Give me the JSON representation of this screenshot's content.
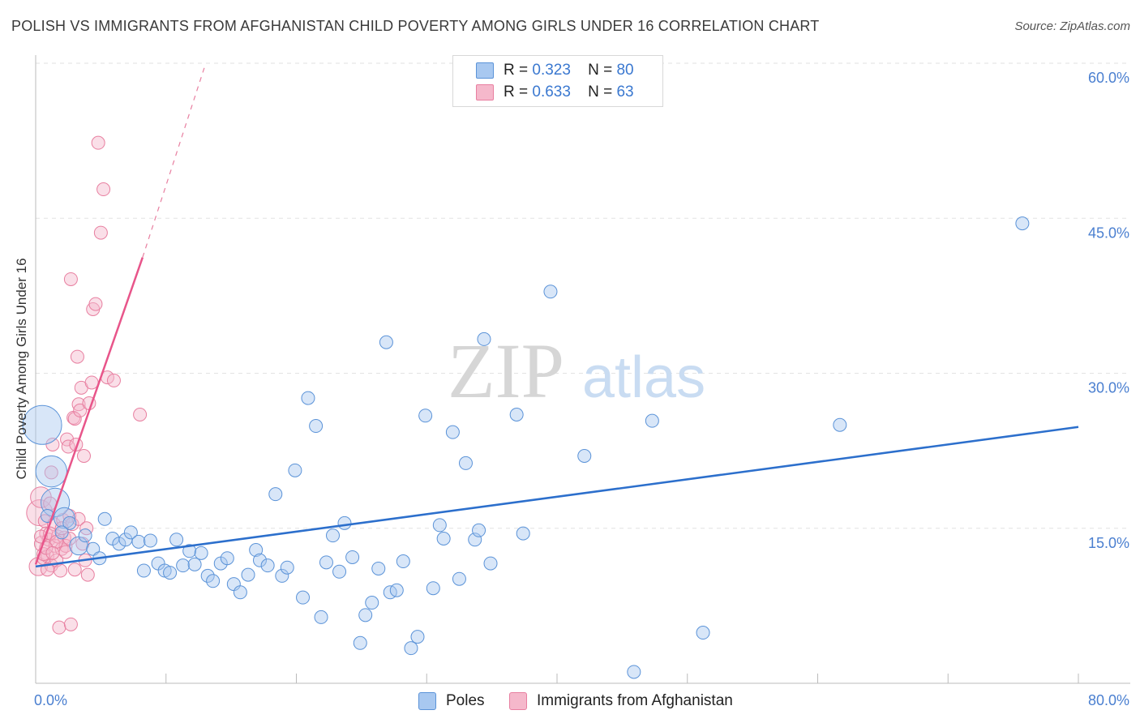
{
  "header": {
    "title": "POLISH VS IMMIGRANTS FROM AFGHANISTAN CHILD POVERTY AMONG GIRLS UNDER 16 CORRELATION CHART",
    "source": "Source: ZipAtlas.com"
  },
  "watermark": {
    "zip": "ZIP",
    "atlas": "atlas"
  },
  "legend": {
    "rows": [
      {
        "r_label": "R =",
        "r_value": "0.323",
        "n_label": "N =",
        "n_value": "80"
      },
      {
        "r_label": "R =",
        "r_value": "0.633",
        "n_label": "N =",
        "n_value": "63"
      }
    ]
  },
  "bottom_legend": {
    "poles": "Poles",
    "afghan": "Immigrants from Afghanistan"
  },
  "chart_data": {
    "type": "scatter",
    "title": "POLISH VS IMMIGRANTS FROM AFGHANISTAN CHILD POVERTY AMONG GIRLS UNDER 16 CORRELATION CHART",
    "xlabel": "",
    "ylabel": "Child Poverty Among Girls Under 16",
    "xlim": [
      0,
      80
    ],
    "ylim": [
      0,
      60
    ],
    "x_tick_labels": [
      "0.0%",
      "80.0%"
    ],
    "y_ticks": [
      15,
      30,
      45,
      60
    ],
    "y_tick_labels": [
      "15.0%",
      "30.0%",
      "45.0%",
      "60.0%"
    ],
    "grid": true,
    "colors": {
      "poles_fill": "#a8c8f0",
      "poles_stroke": "#5b93d8",
      "poles_line": "#2c6fcc",
      "afghan_fill": "#f5b8cb",
      "afghan_stroke": "#e87fa0",
      "afghan_line": "#e8558a",
      "axis_text": "#4a7fd0"
    },
    "series": [
      {
        "name": "Poles",
        "R": 0.323,
        "N": 80,
        "trend": {
          "x0": 0,
          "y0": 11.3,
          "x1": 80,
          "y1": 24.8
        },
        "points": [
          [
            0.5,
            25.0,
            3
          ],
          [
            1.2,
            20.5,
            2.4
          ],
          [
            1.5,
            17.5,
            2.2
          ],
          [
            2.2,
            16.0,
            1.6
          ],
          [
            2.6,
            15.5,
            1
          ],
          [
            3.3,
            13.3,
            1.4
          ],
          [
            3.8,
            14.3,
            1
          ],
          [
            4.4,
            13.0,
            1
          ],
          [
            4.9,
            12.1,
            1
          ],
          [
            5.3,
            15.9,
            1
          ],
          [
            5.9,
            14.0,
            1
          ],
          [
            6.4,
            13.5,
            1
          ],
          [
            6.9,
            13.9,
            1
          ],
          [
            7.3,
            14.6,
            1
          ],
          [
            7.9,
            13.7,
            1
          ],
          [
            8.3,
            10.9,
            1
          ],
          [
            8.8,
            13.8,
            1
          ],
          [
            9.4,
            11.6,
            1
          ],
          [
            9.9,
            10.9,
            1
          ],
          [
            10.3,
            10.7,
            1
          ],
          [
            10.8,
            13.9,
            1
          ],
          [
            11.3,
            11.4,
            1
          ],
          [
            11.8,
            12.8,
            1
          ],
          [
            12.2,
            11.5,
            1
          ],
          [
            12.7,
            12.6,
            1
          ],
          [
            13.2,
            10.4,
            1
          ],
          [
            13.6,
            9.9,
            1
          ],
          [
            14.2,
            11.6,
            1
          ],
          [
            14.7,
            12.1,
            1
          ],
          [
            15.2,
            9.6,
            1
          ],
          [
            15.7,
            8.8,
            1
          ],
          [
            16.3,
            10.5,
            1
          ],
          [
            16.9,
            12.9,
            1
          ],
          [
            17.2,
            11.9,
            1
          ],
          [
            17.8,
            11.4,
            1
          ],
          [
            18.4,
            18.3,
            1
          ],
          [
            18.9,
            10.4,
            1
          ],
          [
            19.3,
            11.2,
            1
          ],
          [
            19.9,
            20.6,
            1
          ],
          [
            20.5,
            8.3,
            1
          ],
          [
            20.9,
            27.6,
            1
          ],
          [
            21.5,
            24.9,
            1
          ],
          [
            21.9,
            6.4,
            1
          ],
          [
            22.3,
            11.7,
            1
          ],
          [
            22.8,
            14.3,
            1
          ],
          [
            23.3,
            10.8,
            1
          ],
          [
            23.7,
            15.5,
            1
          ],
          [
            24.3,
            12.2,
            1
          ],
          [
            24.9,
            3.9,
            1
          ],
          [
            25.3,
            6.6,
            1
          ],
          [
            25.8,
            7.8,
            1
          ],
          [
            26.3,
            11.1,
            1
          ],
          [
            26.9,
            33.0,
            1
          ],
          [
            27.2,
            8.8,
            1
          ],
          [
            27.7,
            9.0,
            1
          ],
          [
            28.2,
            11.8,
            1
          ],
          [
            28.8,
            3.4,
            1
          ],
          [
            29.3,
            4.5,
            1
          ],
          [
            29.9,
            25.9,
            1
          ],
          [
            30.5,
            9.2,
            1
          ],
          [
            31.0,
            15.3,
            1
          ],
          [
            31.3,
            14.0,
            1
          ],
          [
            32.0,
            24.3,
            1
          ],
          [
            32.5,
            10.1,
            1
          ],
          [
            33.0,
            21.3,
            1
          ],
          [
            33.7,
            13.9,
            1
          ],
          [
            34.0,
            14.8,
            1
          ],
          [
            34.4,
            33.3,
            1
          ],
          [
            34.9,
            11.6,
            1
          ],
          [
            36.9,
            26.0,
            1
          ],
          [
            37.4,
            14.5,
            1
          ],
          [
            39.5,
            37.9,
            1
          ],
          [
            42.1,
            22.0,
            1
          ],
          [
            45.9,
            1.1,
            1
          ],
          [
            47.3,
            25.4,
            1
          ],
          [
            51.2,
            4.9,
            1
          ],
          [
            61.7,
            25.0,
            1
          ],
          [
            75.7,
            44.5,
            1
          ],
          [
            0.9,
            16.2,
            1
          ],
          [
            2.0,
            14.6,
            1
          ]
        ]
      },
      {
        "name": "Immigrants from Afghanistan",
        "R": 0.633,
        "N": 63,
        "trend": {
          "x0": 0,
          "y0": 11.5,
          "x1": 8.2,
          "y1": 41.2,
          "dashed_to": {
            "x": 13.0,
            "y": 59.8
          }
        },
        "points": [
          [
            0.2,
            11.3,
            1.4
          ],
          [
            0.3,
            16.5,
            2
          ],
          [
            0.4,
            18.0,
            1.6
          ],
          [
            0.5,
            13.5,
            1.2
          ],
          [
            0.6,
            12.1,
            1
          ],
          [
            0.7,
            15.7,
            1
          ],
          [
            0.8,
            14.5,
            1
          ],
          [
            0.9,
            12.3,
            1
          ],
          [
            1.0,
            13.9,
            1
          ],
          [
            1.1,
            17.4,
            1
          ],
          [
            1.2,
            11.4,
            1
          ],
          [
            1.2,
            20.4,
            1
          ],
          [
            1.3,
            23.1,
            1
          ],
          [
            1.4,
            15.4,
            1
          ],
          [
            1.5,
            13.3,
            1
          ],
          [
            1.6,
            11.9,
            1
          ],
          [
            1.7,
            14.2,
            1
          ],
          [
            1.8,
            5.4,
            1
          ],
          [
            1.9,
            10.9,
            1
          ],
          [
            2.0,
            13.0,
            1
          ],
          [
            2.1,
            15.8,
            1
          ],
          [
            2.2,
            14.1,
            1
          ],
          [
            2.3,
            13.3,
            1
          ],
          [
            2.4,
            23.6,
            1
          ],
          [
            2.5,
            22.9,
            1
          ],
          [
            2.6,
            16.2,
            1
          ],
          [
            2.7,
            5.7,
            1
          ],
          [
            2.7,
            39.1,
            1
          ],
          [
            2.8,
            15.4,
            1
          ],
          [
            2.9,
            25.7,
            1
          ],
          [
            3.0,
            25.6,
            1
          ],
          [
            3.1,
            23.1,
            1
          ],
          [
            3.2,
            31.6,
            1
          ],
          [
            3.3,
            27.0,
            1
          ],
          [
            3.3,
            15.9,
            1
          ],
          [
            3.4,
            26.4,
            1
          ],
          [
            3.5,
            28.6,
            1
          ],
          [
            3.6,
            13.5,
            1
          ],
          [
            3.7,
            22.0,
            1
          ],
          [
            3.8,
            11.9,
            1
          ],
          [
            3.9,
            15.0,
            1
          ],
          [
            4.0,
            10.5,
            1
          ],
          [
            4.1,
            27.1,
            1
          ],
          [
            4.3,
            29.1,
            1
          ],
          [
            4.4,
            36.2,
            1
          ],
          [
            4.6,
            36.7,
            1
          ],
          [
            4.8,
            52.3,
            1
          ],
          [
            5.0,
            43.6,
            1
          ],
          [
            5.2,
            47.8,
            1
          ],
          [
            5.5,
            29.6,
            1
          ],
          [
            6.0,
            29.3,
            1
          ],
          [
            8.0,
            26.0,
            1
          ],
          [
            0.4,
            14.2,
            1
          ],
          [
            0.6,
            12.5,
            1
          ],
          [
            0.9,
            11.0,
            1
          ],
          [
            1.1,
            14.5,
            1
          ],
          [
            1.6,
            13.7,
            1
          ],
          [
            2.0,
            15.0,
            1
          ],
          [
            2.3,
            12.7,
            1
          ],
          [
            2.6,
            14.0,
            1
          ],
          [
            3.0,
            11.0,
            1
          ],
          [
            0.8,
            13.1,
            1
          ],
          [
            1.3,
            12.6,
            1
          ]
        ]
      }
    ]
  }
}
